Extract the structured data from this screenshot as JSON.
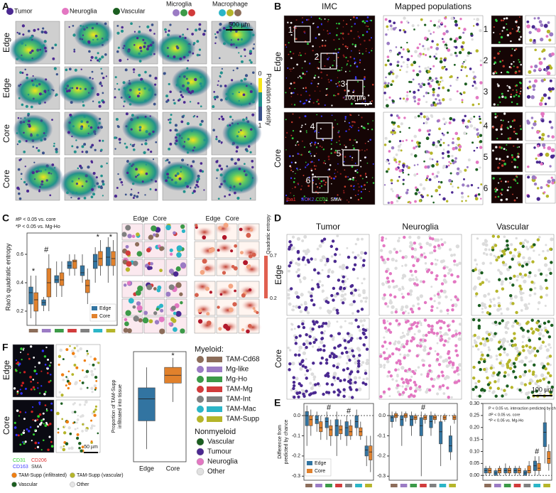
{
  "panel_a": {
    "letter": "A",
    "legend": [
      "Tumor",
      "Neuroglia",
      "Vascular",
      "Microglia",
      "Macrophage"
    ],
    "rows": [
      "Edge",
      "Edge",
      "Core",
      "Core"
    ],
    "scale": "500 µm",
    "colorbar_label": "Population density",
    "colorbar_ticks": [
      "0",
      "1"
    ]
  },
  "panel_b": {
    "letter": "B",
    "columns": [
      "IMC",
      "Mapped populations"
    ],
    "rows": [
      "Edge",
      "Core"
    ],
    "scale": "100 µm",
    "insets": [
      "1",
      "2",
      "3",
      "4",
      "5",
      "6"
    ],
    "channels": [
      "Iba1",
      "SOX2",
      "CD31",
      "SMA"
    ]
  },
  "panel_c": {
    "letter": "C",
    "map_columns": [
      "Edge",
      "Core"
    ],
    "colorbar_label": "Quadratic entropy",
    "colorbar_ticks": [
      "0.7",
      "0.2"
    ]
  },
  "panel_d": {
    "letter": "D",
    "columns": [
      "Tumor",
      "Neuroglia",
      "Vascular"
    ],
    "rows": [
      "Edge",
      "Core"
    ],
    "scale": "100 µm"
  },
  "panel_e": {
    "letter": "E"
  },
  "panel_f": {
    "letter": "F",
    "rows": [
      "Edge",
      "Core"
    ],
    "channels": [
      "CD31",
      "CD206",
      "CD163",
      "SMA"
    ],
    "scale": "50 µm",
    "legend": [
      {
        "name": "TAM-Supp (infiltrated)",
        "color": "#f07f12"
      },
      {
        "name": "TAM-Supp (vascular)",
        "color": "#b5b52a"
      },
      {
        "name": "Vascular",
        "color": "#1b5e20"
      },
      {
        "name": "Other",
        "color": "#e6e6e6"
      }
    ]
  },
  "legend": {
    "myeloid_title": "Myeloid:",
    "myeloid": [
      {
        "name": "TAM-Cd68",
        "color": "#8c6d5a"
      },
      {
        "name": "Mg-like",
        "color": "#9b7bc4"
      },
      {
        "name": "Mg-Ho",
        "color": "#3c9a48"
      },
      {
        "name": "TAM-Mg",
        "color": "#d13b3b"
      },
      {
        "name": "TAM-Int",
        "color": "#808080"
      },
      {
        "name": "TAM-Mac",
        "color": "#2bb5c7"
      },
      {
        "name": "TAM-Supp",
        "color": "#b5b52a"
      }
    ],
    "nonmyeloid_title": "Nonmyeloid",
    "nonmyeloid": [
      {
        "name": "Vascular",
        "color": "#1b5e20"
      },
      {
        "name": "Tumour",
        "color": "#4b2991"
      },
      {
        "name": "Neuroglia",
        "color": "#e377c2"
      },
      {
        "name": "Other",
        "color": "#e0e0e0"
      }
    ]
  },
  "chart_data": [
    {
      "type": "box",
      "ylabel": [
        "Rao's quadratic entropy"
      ],
      "notes": [
        "#P < 0.05 vs. core",
        "*P < 0.05 vs. Mg-Ho"
      ],
      "legend": "lower right",
      "ylim": [
        0.1,
        0.75
      ],
      "yticks": [
        0.2,
        0.4,
        0.6
      ],
      "category_colors": [
        "#8c6d5a",
        "#9b7bc4",
        "#3c9a48",
        "#d13b3b",
        "#808080",
        "#2bb5c7",
        "#b5b52a"
      ],
      "series": [
        {
          "name": "Edge",
          "color": "#3274a1",
          "boxes": [
            [
              0.15,
              0.25,
              0.33,
              0.37,
              0.45
            ],
            [
              0.2,
              0.24,
              0.26,
              0.28,
              0.3
            ],
            [
              0.3,
              0.4,
              0.42,
              0.45,
              0.55
            ],
            [
              0.45,
              0.5,
              0.52,
              0.55,
              0.6
            ],
            [
              0.4,
              0.45,
              0.47,
              0.52,
              0.6
            ],
            [
              0.4,
              0.5,
              0.55,
              0.6,
              0.65
            ],
            [
              0.4,
              0.52,
              0.58,
              0.65,
              0.72
            ]
          ]
        },
        {
          "name": "Core",
          "color": "#e1812c",
          "boxes": [
            [
              0.1,
              0.2,
              0.28,
              0.33,
              0.45
            ],
            [
              0.2,
              0.3,
              0.4,
              0.5,
              0.6
            ],
            [
              0.3,
              0.38,
              0.42,
              0.47,
              0.55
            ],
            [
              0.45,
              0.5,
              0.55,
              0.56,
              0.6
            ],
            [
              0.25,
              0.33,
              0.38,
              0.42,
              0.5
            ],
            [
              0.45,
              0.52,
              0.57,
              0.62,
              0.7
            ],
            [
              0.45,
              0.52,
              0.57,
              0.62,
              0.7
            ]
          ]
        }
      ],
      "markers": [
        {
          "text": "*",
          "category": 0
        },
        {
          "text": "#",
          "category": 1
        },
        {
          "text": "*",
          "category": 5
        },
        {
          "text": "*",
          "category": 6
        }
      ]
    },
    {
      "type": "box",
      "ylabel": [
        "Difference from",
        "predicted by chance"
      ],
      "legend": "lower left",
      "ylim": [
        -0.32,
        0.06
      ],
      "yticks": [
        {
          "value": 0,
          "label": "0.0"
        },
        -0.1,
        -0.2,
        -0.3
      ],
      "category_colors": [
        "#8c6d5a",
        "#9b7bc4",
        "#3c9a48",
        "#d13b3b",
        "#808080",
        "#2bb5c7",
        "#b5b52a"
      ],
      "series": [
        {
          "name": "Edge",
          "color": "#3274a1",
          "boxes": [
            [
              -0.15,
              -0.05,
              0,
              0.02,
              0.05
            ],
            [
              -0.08,
              -0.04,
              -0.02,
              0,
              0.02
            ],
            [
              -0.12,
              -0.06,
              -0.03,
              -0.01,
              0.02
            ],
            [
              -0.2,
              -0.1,
              -0.05,
              -0.02,
              0.02
            ],
            [
              -0.15,
              -0.1,
              -0.06,
              -0.03,
              0
            ],
            [
              -0.1,
              -0.06,
              -0.03,
              0,
              0.03
            ],
            [
              -0.25,
              -0.2,
              -0.17,
              -0.15,
              -0.1
            ]
          ]
        },
        {
          "name": "Core",
          "color": "#e1812c",
          "boxes": [
            [
              -0.1,
              -0.05,
              -0.02,
              0,
              0.03
            ],
            [
              -0.12,
              -0.08,
              -0.06,
              -0.03,
              0
            ],
            [
              -0.15,
              -0.1,
              -0.07,
              -0.05,
              -0.02
            ],
            [
              -0.12,
              -0.09,
              -0.07,
              -0.05,
              -0.02
            ],
            [
              -0.12,
              -0.1,
              -0.08,
              -0.05,
              -0.02
            ],
            [
              -0.12,
              -0.1,
              -0.08,
              -0.06,
              -0.03
            ],
            [
              -0.28,
              -0.22,
              -0.18,
              -0.15,
              -0.1
            ]
          ]
        }
      ],
      "markers": [
        {
          "text": "#",
          "category": 2
        },
        {
          "text": "#",
          "category": 4
        }
      ]
    },
    {
      "type": "box",
      "ylim": [
        -0.32,
        0.06
      ],
      "yticks": [
        {
          "value": 0,
          "label": "0.0"
        },
        -0.1,
        -0.2,
        -0.3
      ],
      "category_colors": [
        "#8c6d5a",
        "#9b7bc4",
        "#3c9a48",
        "#d13b3b",
        "#808080",
        "#2bb5c7",
        "#b5b52a"
      ],
      "series": [
        {
          "name": "Edge",
          "color": "#3274a1",
          "boxes": [
            [
              -0.06,
              -0.03,
              -0.01,
              0,
              0.02
            ],
            [
              -0.15,
              -0.05,
              -0.02,
              0,
              0.02
            ],
            [
              -0.1,
              -0.05,
              -0.02,
              0,
              0.02
            ],
            [
              -0.3,
              -0.1,
              -0.05,
              -0.01,
              0.02
            ],
            [
              -0.1,
              -0.06,
              -0.03,
              0,
              0.02
            ],
            [
              -0.25,
              -0.14,
              -0.08,
              -0.03,
              0
            ],
            [
              -0.22,
              -0.18,
              -0.15,
              -0.1,
              -0.05
            ]
          ]
        },
        {
          "name": "Core",
          "color": "#e1812c",
          "boxes": [
            [
              -0.03,
              -0.01,
              0,
              0.01,
              0.02
            ],
            [
              -0.03,
              -0.01,
              0,
              0.01,
              0.02
            ],
            [
              -0.04,
              -0.02,
              -0.01,
              0,
              0.01
            ],
            [
              -0.04,
              -0.02,
              -0.01,
              0,
              0.01
            ],
            [
              -0.04,
              -0.02,
              -0.01,
              0,
              0.01
            ],
            [
              -0.03,
              -0.02,
              -0.01,
              0,
              0.01
            ],
            [
              -0.04,
              -0.02,
              -0.01,
              0,
              0.01
            ]
          ]
        }
      ],
      "markers": [
        {
          "text": "#",
          "category": 3
        }
      ]
    },
    {
      "type": "box",
      "notes": [
        "P < 0.05 vs. interaction predicted by chance",
        "#P < 0.05 vs. core",
        "*P < 0.05 vs. Mg-Ho"
      ],
      "ylim": [
        -0.02,
        0.3
      ],
      "yticks": [
        {
          "value": 0,
          "label": "0.00"
        },
        0.05,
        {
          "value": 0.1,
          "label": "0.10"
        },
        0.15,
        {
          "value": 0.2,
          "label": "0.20"
        },
        0.25,
        {
          "value": 0.3,
          "label": "0.30"
        }
      ],
      "category_colors": [
        "#8c6d5a",
        "#9b7bc4",
        "#3c9a48",
        "#d13b3b",
        "#808080",
        "#2bb5c7",
        "#b5b52a"
      ],
      "series": [
        {
          "name": "Edge",
          "color": "#3274a1",
          "boxes": [
            [
              0,
              0.01,
              0.02,
              0.03,
              0.04
            ],
            [
              0,
              0,
              0.01,
              0.02,
              0.03
            ],
            [
              0,
              0.01,
              0.02,
              0.03,
              0.05
            ],
            [
              0,
              0.01,
              0.02,
              0.03,
              0.04
            ],
            [
              0,
              0,
              0.01,
              0.02,
              0.03
            ],
            [
              0,
              0.02,
              0.04,
              0.06,
              0.08
            ],
            [
              0.05,
              0.12,
              0.18,
              0.22,
              0.28
            ]
          ]
        },
        {
          "name": "Core",
          "color": "#e1812c",
          "boxes": [
            [
              0,
              0.01,
              0.02,
              0.03,
              0.04
            ],
            [
              0,
              0.01,
              0.02,
              0.03,
              0.04
            ],
            [
              0,
              0.01,
              0.02,
              0.03,
              0.04
            ],
            [
              0,
              0.01,
              0.02,
              0.03,
              0.04
            ],
            [
              0,
              0.01,
              0.02,
              0.04,
              0.06
            ],
            [
              0,
              0.02,
              0.03,
              0.05,
              0.08
            ],
            [
              0.02,
              0.05,
              0.07,
              0.1,
              0.13
            ]
          ]
        }
      ],
      "markers": [
        {
          "text": "#",
          "category": 5
        }
      ]
    },
    {
      "type": "box",
      "ylabel": [
        "Proportion of TAM-Supp",
        "infiltrated into tissue"
      ],
      "ylim": [
        0.3,
        1.0
      ],
      "categories": [
        "Edge",
        "Core"
      ],
      "colors": [
        "#3274a1",
        "#e1812c"
      ],
      "boxes": [
        [
          0.38,
          0.56,
          0.7,
          0.77,
          0.9
        ],
        [
          0.68,
          0.8,
          0.85,
          0.9,
          0.96
        ]
      ],
      "markers": [
        {
          "text": "*",
          "category": 1
        }
      ]
    }
  ]
}
